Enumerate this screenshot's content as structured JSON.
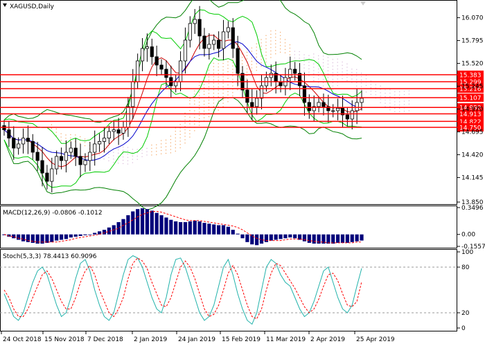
{
  "symbol_label": "XAGUSD,Daily",
  "macd_label": "MACD(12,26,9) -0.0806 -0.1012",
  "stoch_label": "Stoch(5,3,3) 78.4413 60.9096",
  "colors": {
    "bull": "#000000",
    "bear": "#000000",
    "level_line": "#ff0000",
    "level_box": "#ff0000",
    "bb": "#008000",
    "ma_fast": "#cc0000",
    "ma_slow": "#0000cc",
    "envelope": "#00cc00",
    "cloud_a": "#f4a460",
    "cloud_b": "#d8b8d8",
    "macd_hist": "#00007a",
    "macd_signal": "#ff0000",
    "stoch_main": "#20b2aa",
    "stoch_signal": "#ff0000"
  },
  "chart_data": [
    {
      "type": "candlestick",
      "title": "XAGUSD,Daily",
      "ylim": [
        13.85,
        16.2
      ],
      "price_ticks": [
        16.07,
        15.795,
        15.52,
        15.245,
        14.97,
        14.695,
        14.42,
        14.145,
        13.85
      ],
      "dates": [
        "24 Oct 2018",
        "15 Nov 2018",
        "7 Dec 2018",
        "2 Jan 2019",
        "24 Jan 2019",
        "15 Feb 2019",
        "11 Mar 2019",
        "2 Apr 2019",
        "25 Apr 2019"
      ],
      "levels": [
        15.383,
        15.299,
        15.216,
        15.107,
        14.99,
        14.913,
        14.822,
        14.75
      ],
      "level_labels": [
        "15.383",
        "15.299",
        "15.216",
        "15.107",
        "14.990",
        "14.913",
        "14.822",
        "14.750"
      ],
      "close_series": [
        14.72,
        14.62,
        14.5,
        14.55,
        14.62,
        14.58,
        14.45,
        14.35,
        14.2,
        14.1,
        14.25,
        14.4,
        14.35,
        14.45,
        14.5,
        14.4,
        14.3,
        14.35,
        14.45,
        14.55,
        14.58,
        14.62,
        14.7,
        14.72,
        14.68,
        14.75,
        15.0,
        15.3,
        15.55,
        15.7,
        15.72,
        15.6,
        15.5,
        15.45,
        15.35,
        15.25,
        15.3,
        15.55,
        15.8,
        16.0,
        16.05,
        15.85,
        15.7,
        15.75,
        15.8,
        15.7,
        15.9,
        15.95,
        15.7,
        15.4,
        15.2,
        15.05,
        15.0,
        15.1,
        15.25,
        15.35,
        15.4,
        15.3,
        15.25,
        15.35,
        15.45,
        15.4,
        15.25,
        15.05,
        14.95,
        15.0,
        15.05,
        15.0,
        14.95,
        14.95,
        14.98,
        14.9,
        14.85,
        14.95,
        15.05,
        15.1
      ]
    },
    {
      "type": "bar",
      "title": "MACD(12,26,9)",
      "ylim": [
        -0.1557,
        0.3496
      ],
      "ticks": [
        "0.3496",
        "0.00",
        "-0.1557"
      ],
      "values": [
        -0.01,
        -0.03,
        -0.05,
        -0.07,
        -0.09,
        -0.1,
        -0.11,
        -0.12,
        -0.12,
        -0.11,
        -0.1,
        -0.08,
        -0.07,
        -0.06,
        -0.04,
        -0.03,
        -0.02,
        -0.01,
        0.0,
        0.02,
        0.04,
        0.06,
        0.09,
        0.12,
        0.16,
        0.2,
        0.25,
        0.3,
        0.33,
        0.34,
        0.33,
        0.31,
        0.28,
        0.25,
        0.22,
        0.19,
        0.17,
        0.16,
        0.16,
        0.17,
        0.18,
        0.17,
        0.15,
        0.14,
        0.13,
        0.12,
        0.12,
        0.1,
        0.06,
        0.01,
        -0.05,
        -0.1,
        -0.13,
        -0.14,
        -0.12,
        -0.1,
        -0.08,
        -0.07,
        -0.06,
        -0.05,
        -0.04,
        -0.05,
        -0.07,
        -0.09,
        -0.11,
        -0.12,
        -0.12,
        -0.12,
        -0.12,
        -0.12,
        -0.11,
        -0.11,
        -0.11,
        -0.1,
        -0.09,
        -0.08
      ],
      "signal_values": [
        0.0,
        -0.02,
        -0.03,
        -0.05,
        -0.06,
        -0.08,
        -0.09,
        -0.1,
        -0.1,
        -0.1,
        -0.1,
        -0.1,
        -0.09,
        -0.08,
        -0.07,
        -0.05,
        -0.04,
        -0.03,
        -0.02,
        -0.01,
        0.0,
        0.02,
        0.04,
        0.06,
        0.08,
        0.12,
        0.15,
        0.19,
        0.23,
        0.26,
        0.28,
        0.3,
        0.3,
        0.29,
        0.27,
        0.25,
        0.23,
        0.21,
        0.19,
        0.18,
        0.18,
        0.18,
        0.17,
        0.16,
        0.15,
        0.14,
        0.13,
        0.12,
        0.11,
        0.09,
        0.06,
        0.02,
        -0.02,
        -0.05,
        -0.07,
        -0.08,
        -0.08,
        -0.08,
        -0.08,
        -0.07,
        -0.06,
        -0.06,
        -0.06,
        -0.07,
        -0.08,
        -0.09,
        -0.1,
        -0.1,
        -0.11,
        -0.11,
        -0.11,
        -0.11,
        -0.11,
        -0.11,
        -0.1,
        -0.1
      ]
    },
    {
      "type": "line",
      "title": "Stoch(5,3,3)",
      "ylim": [
        0,
        100
      ],
      "ticks": [
        "100",
        "80",
        "20",
        "0"
      ],
      "series": [
        {
          "values": [
            45,
            30,
            15,
            10,
            20,
            40,
            60,
            75,
            80,
            70,
            50,
            30,
            15,
            20,
            40,
            65,
            85,
            90,
            75,
            50,
            30,
            15,
            10,
            20,
            45,
            70,
            90,
            95,
            92,
            80,
            60,
            40,
            25,
            20,
            40,
            70,
            90,
            92,
            80,
            60,
            40,
            20,
            10,
            15,
            30,
            55,
            80,
            90,
            70,
            45,
            25,
            10,
            5,
            20,
            50,
            80,
            90,
            85,
            70,
            60,
            55,
            40,
            25,
            15,
            20,
            35,
            55,
            75,
            80,
            60,
            40,
            25,
            20,
            30,
            55,
            78.4413
          ]
        },
        {
          "values": [
            50,
            40,
            25,
            15,
            15,
            25,
            40,
            55,
            70,
            75,
            65,
            50,
            35,
            25,
            25,
            40,
            60,
            75,
            82,
            70,
            50,
            35,
            20,
            15,
            25,
            40,
            65,
            85,
            92,
            88,
            78,
            60,
            45,
            30,
            28,
            40,
            60,
            80,
            88,
            80,
            65,
            45,
            25,
            15,
            18,
            30,
            50,
            72,
            82,
            70,
            50,
            30,
            15,
            12,
            25,
            50,
            72,
            85,
            82,
            72,
            62,
            52,
            40,
            28,
            20,
            25,
            38,
            55,
            70,
            72,
            62,
            45,
            30,
            28,
            35,
            60.9096
          ]
        }
      ]
    }
  ]
}
